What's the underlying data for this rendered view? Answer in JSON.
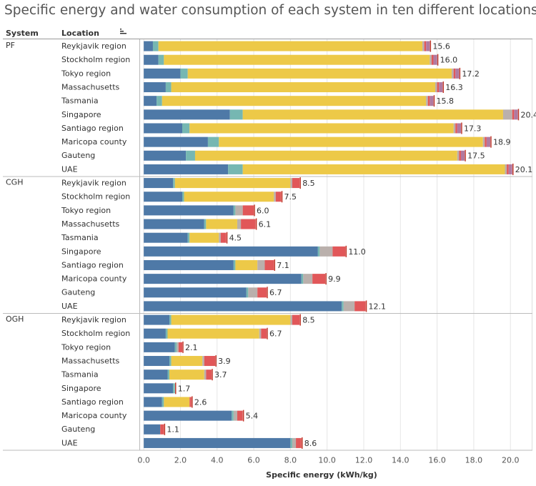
{
  "title": "Specific energy and water consumption of each system in ten different locations",
  "headers": {
    "system": "System",
    "location": "Location"
  },
  "sort_icon": "sort-descending-icon",
  "colors": {
    "s1": "#4e79a7",
    "s2": "#76b7b2",
    "s3": "#edc948",
    "s4": "#bab0ac",
    "s5": "#e15759",
    "s6": "#b07aa1",
    "marker": "#c0392b"
  },
  "chart_data": {
    "type": "bar",
    "orientation": "horizontal",
    "stacked": true,
    "xlabel": "Specific energy (kWh/kg)",
    "xlim": [
      -0.2,
      21.2
    ],
    "xticks": [
      0.0,
      2.0,
      4.0,
      6.0,
      8.0,
      10.0,
      12.0,
      14.0,
      16.0,
      18.0,
      20.0
    ],
    "grid": true,
    "groups": [
      {
        "system": "PF",
        "rows": [
          {
            "location": "Reykjavik region",
            "segments": [
              0.5,
              0.3,
              14.4,
              0.1,
              0.1,
              0.2
            ],
            "total": "15.6"
          },
          {
            "location": "Stockholm region",
            "segments": [
              0.8,
              0.3,
              14.5,
              0.1,
              0.1,
              0.2
            ],
            "total": "16.0"
          },
          {
            "location": "Tokyo region",
            "segments": [
              2.0,
              0.4,
              14.4,
              0.1,
              0.1,
              0.2
            ],
            "total": "17.2"
          },
          {
            "location": "Massachusetts",
            "segments": [
              1.2,
              0.3,
              14.4,
              0.1,
              0.1,
              0.2
            ],
            "total": "16.3"
          },
          {
            "location": "Tasmania",
            "segments": [
              0.7,
              0.3,
              14.4,
              0.1,
              0.1,
              0.2
            ],
            "total": "15.8"
          },
          {
            "location": "Singapore",
            "segments": [
              4.7,
              0.7,
              14.2,
              0.5,
              0.1,
              0.2
            ],
            "total": "20.4"
          },
          {
            "location": "Santiago region",
            "segments": [
              2.1,
              0.4,
              14.4,
              0.1,
              0.1,
              0.2
            ],
            "total": "17.3"
          },
          {
            "location": "Maricopa county",
            "segments": [
              3.5,
              0.6,
              14.4,
              0.1,
              0.1,
              0.2
            ],
            "total": "18.9"
          },
          {
            "location": "Gauteng",
            "segments": [
              2.3,
              0.5,
              14.3,
              0.1,
              0.1,
              0.2
            ],
            "total": "17.5"
          },
          {
            "location": "UAE",
            "segments": [
              4.6,
              0.8,
              14.3,
              0.1,
              0.1,
              0.2
            ],
            "total": "20.1"
          }
        ]
      },
      {
        "system": "CGH",
        "rows": [
          {
            "location": "Reykjavik region",
            "segments": [
              1.6,
              0.1,
              6.3,
              0.1,
              0.4,
              0.0
            ],
            "total": "8.5"
          },
          {
            "location": "Stockholm region",
            "segments": [
              2.1,
              0.1,
              4.9,
              0.1,
              0.3,
              0.0
            ],
            "total": "7.5"
          },
          {
            "location": "Tokyo region",
            "segments": [
              4.9,
              0.1,
              0.0,
              0.4,
              0.6,
              0.0
            ],
            "total": "6.0"
          },
          {
            "location": "Massachusetts",
            "segments": [
              3.3,
              0.1,
              1.7,
              0.2,
              0.8,
              0.0
            ],
            "total": "6.1"
          },
          {
            "location": "Tasmania",
            "segments": [
              2.4,
              0.1,
              1.6,
              0.1,
              0.3,
              0.0
            ],
            "total": "4.5"
          },
          {
            "location": "Singapore",
            "segments": [
              9.5,
              0.1,
              0.0,
              0.7,
              0.7,
              0.0
            ],
            "total": "11.0"
          },
          {
            "location": "Santiago region",
            "segments": [
              4.9,
              0.1,
              1.2,
              0.4,
              0.5,
              0.0
            ],
            "total": "7.1"
          },
          {
            "location": "Maricopa county",
            "segments": [
              8.6,
              0.1,
              0.0,
              0.5,
              0.7,
              0.0
            ],
            "total": "9.9"
          },
          {
            "location": "Gauteng",
            "segments": [
              5.6,
              0.1,
              0.0,
              0.5,
              0.5,
              0.0
            ],
            "total": "6.7"
          },
          {
            "location": "UAE",
            "segments": [
              10.8,
              0.1,
              0.0,
              0.6,
              0.6,
              0.0
            ],
            "total": "12.1"
          }
        ]
      },
      {
        "system": "OGH",
        "rows": [
          {
            "location": "Reykjavik region",
            "segments": [
              1.4,
              0.1,
              6.5,
              0.1,
              0.4,
              0.0
            ],
            "total": "8.5"
          },
          {
            "location": "Stockholm region",
            "segments": [
              1.2,
              0.1,
              5.0,
              0.1,
              0.3,
              0.0
            ],
            "total": "6.7"
          },
          {
            "location": "Tokyo region",
            "segments": [
              1.7,
              0.1,
              0.0,
              0.1,
              0.2,
              0.0
            ],
            "total": "2.1"
          },
          {
            "location": "Massachusetts",
            "segments": [
              1.4,
              0.1,
              1.7,
              0.1,
              0.6,
              0.0
            ],
            "total": "3.9"
          },
          {
            "location": "Tasmania",
            "segments": [
              1.3,
              0.1,
              1.9,
              0.1,
              0.3,
              0.0
            ],
            "total": "3.7"
          },
          {
            "location": "Singapore",
            "segments": [
              1.6,
              0.1,
              0.0,
              0.0,
              0.0,
              0.0
            ],
            "total": "1.7"
          },
          {
            "location": "Santiago region",
            "segments": [
              1.0,
              0.1,
              1.4,
              0.0,
              0.1,
              0.0
            ],
            "total": "2.6"
          },
          {
            "location": "Maricopa county",
            "segments": [
              4.8,
              0.1,
              0.0,
              0.2,
              0.3,
              0.0
            ],
            "total": "5.4"
          },
          {
            "location": "Gauteng",
            "segments": [
              0.9,
              0.0,
              0.0,
              0.0,
              0.2,
              0.0
            ],
            "total": "1.1"
          },
          {
            "location": "UAE",
            "segments": [
              8.0,
              0.1,
              0.0,
              0.2,
              0.3,
              0.0
            ],
            "total": "8.6"
          }
        ]
      }
    ]
  }
}
